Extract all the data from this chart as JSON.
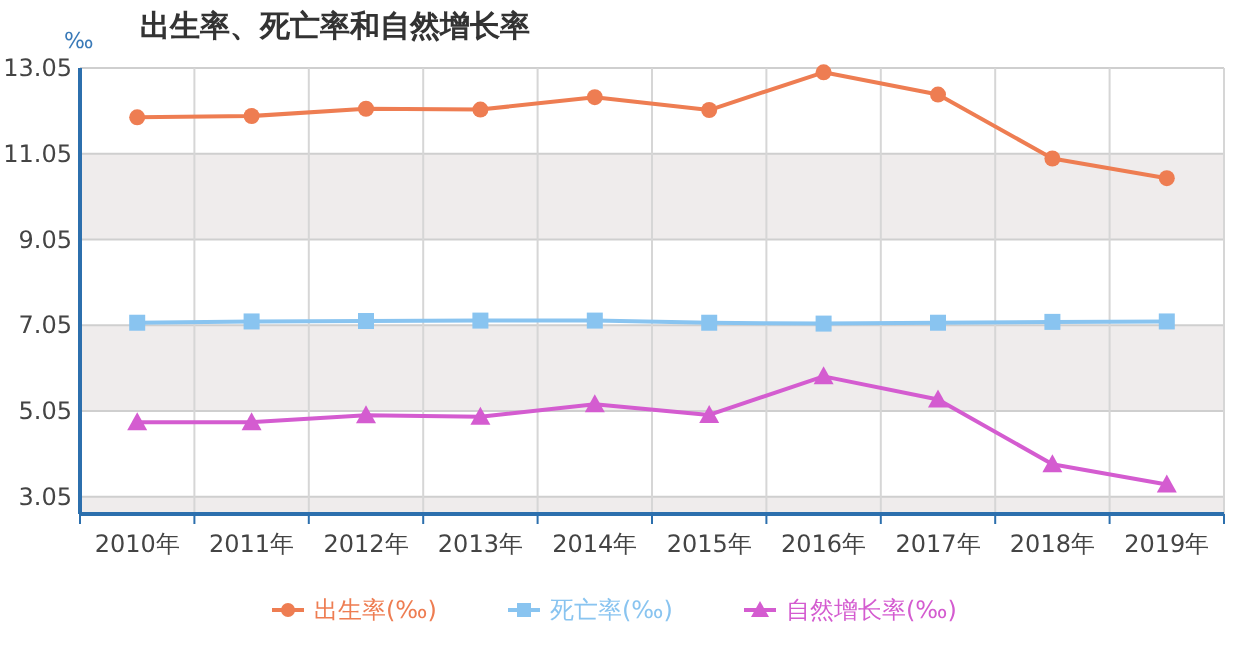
{
  "chart_data": {
    "type": "line",
    "title": "出生率、死亡率和自然增长率",
    "ylabel": "‰",
    "categories": [
      "2010年",
      "2011年",
      "2012年",
      "2013年",
      "2014年",
      "2015年",
      "2016年",
      "2017年",
      "2018年",
      "2019年"
    ],
    "series": [
      {
        "name": "出生率(‰)",
        "color": "#ee7d52",
        "marker": "circle",
        "values": [
          11.9,
          11.93,
          12.1,
          12.08,
          12.37,
          12.07,
          12.95,
          12.43,
          10.94,
          10.48
        ]
      },
      {
        "name": "死亡率(‰)",
        "color": "#89c4f0",
        "marker": "square",
        "values": [
          7.11,
          7.14,
          7.15,
          7.16,
          7.16,
          7.11,
          7.09,
          7.11,
          7.13,
          7.14
        ]
      },
      {
        "name": "自然增长率(‰)",
        "color": "#d45cd0",
        "marker": "triangle",
        "values": [
          4.79,
          4.79,
          4.95,
          4.92,
          5.21,
          4.96,
          5.86,
          5.32,
          3.81,
          3.34
        ]
      }
    ],
    "ylim": [
      2.65,
      13.05
    ],
    "yticks": [
      3.05,
      5.05,
      7.05,
      9.05,
      11.05,
      13.05
    ],
    "grid": true,
    "legend": "bottom"
  }
}
